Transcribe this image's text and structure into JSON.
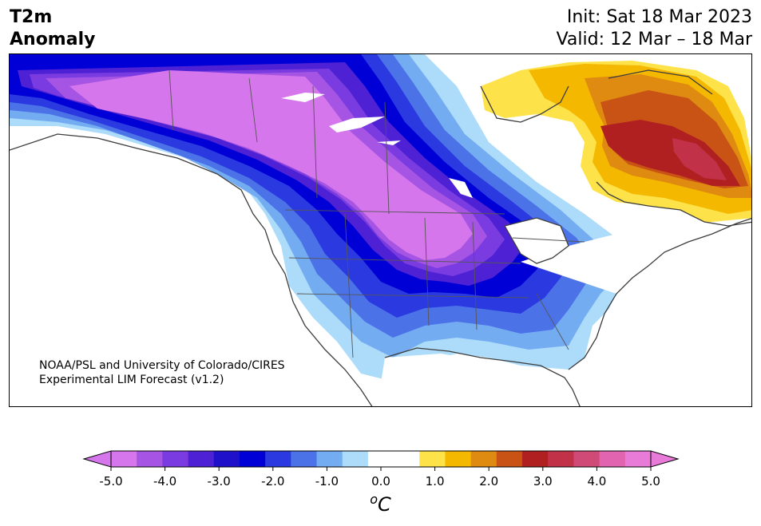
{
  "header": {
    "title_line1": "T2m",
    "title_line2": "Anomaly",
    "init": "Init: Sat 18 Mar 2023",
    "valid": "Valid: 12 Mar – 18 Mar"
  },
  "credit": {
    "line1": "NOAA/PSL and University of Colorado/CIRES",
    "line2": "Experimental LIM Forecast (v1.2)"
  },
  "colorbar": {
    "unit_base": "C",
    "unit_sup": "o",
    "ticks": [
      "-5.0",
      "-4.0",
      "-3.0",
      "-2.0",
      "-1.0",
      "0.0",
      "1.0",
      "2.0",
      "3.0",
      "4.0",
      "5.0"
    ],
    "colors": [
      "#d676ec",
      "#a654e3",
      "#7a3ce0",
      "#4e22d4",
      "#1f10c9",
      "#0000d6",
      "#2a3ae0",
      "#4c72e8",
      "#74acf2",
      "#addcfa",
      "#ffffff",
      "#ffffff",
      "#fde24a",
      "#f5b800",
      "#df8a10",
      "#c85315",
      "#b02020",
      "#c13248",
      "#d04a78",
      "#e064b0",
      "#e87ad8"
    ]
  },
  "map": {
    "region": "North America",
    "field": "2m temperature anomaly",
    "range_c": [
      -5.0,
      5.0
    ]
  }
}
